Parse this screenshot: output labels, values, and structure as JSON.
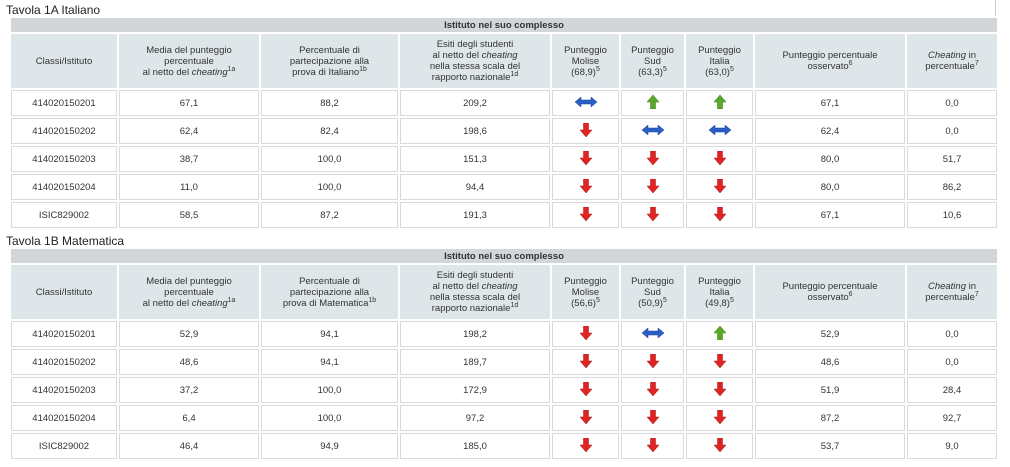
{
  "table_a": {
    "title": "Tavola 1A Italiano",
    "group_header": "Istituto nel suo complesso",
    "headers": {
      "classi": "Classi/Istituto",
      "media_1": "Media del punteggio",
      "media_2": "percentuale",
      "media_3": "al netto del",
      "media_4": "cheating",
      "media_sup": "1a",
      "perc_1": "Percentuale di",
      "perc_2": "partecipazione alla",
      "perc_3": "prova di Italiano",
      "perc_sup": "1b",
      "esiti_1": "Esiti degli studenti",
      "esiti_2": "al netto del",
      "esiti_3": "cheating",
      "esiti_4": "nella stessa scala del",
      "esiti_5": "rapporto nazionale",
      "esiti_sup": "1d",
      "molise_1": "Punteggio",
      "molise_2": "Molise",
      "molise_3": "(68,9)",
      "molise_sup": "5",
      "sud_1": "Punteggio",
      "sud_2": "Sud",
      "sud_3": "(63,3)",
      "sud_sup": "5",
      "italia_1": "Punteggio",
      "italia_2": "Italia",
      "italia_3": "(63,0)",
      "italia_sup": "5",
      "osservato_1": "Punteggio percentuale",
      "osservato_2": "osservato",
      "osservato_sup": "6",
      "cheating_1": "Cheating",
      "cheating_2": "in",
      "cheating_3": "percentuale",
      "cheating_sup": "7"
    },
    "rows": [
      {
        "classe": "414020150201",
        "media": "67,1",
        "perc": "88,2",
        "esiti": "209,2",
        "molise": "equal",
        "sud": "up",
        "italia": "up",
        "osservato": "67,1",
        "cheating": "0,0"
      },
      {
        "classe": "414020150202",
        "media": "62,4",
        "perc": "82,4",
        "esiti": "198,6",
        "molise": "down",
        "sud": "equal",
        "italia": "equal",
        "osservato": "62,4",
        "cheating": "0,0"
      },
      {
        "classe": "414020150203",
        "media": "38,7",
        "perc": "100,0",
        "esiti": "151,3",
        "molise": "down",
        "sud": "down",
        "italia": "down",
        "osservato": "80,0",
        "cheating": "51,7"
      },
      {
        "classe": "414020150204",
        "media": "11,0",
        "perc": "100,0",
        "esiti": "94,4",
        "molise": "down",
        "sud": "down",
        "italia": "down",
        "osservato": "80,0",
        "cheating": "86,2"
      },
      {
        "classe": "ISIC829002",
        "media": "58,5",
        "perc": "87,2",
        "esiti": "191,3",
        "molise": "down",
        "sud": "down",
        "italia": "down",
        "osservato": "67,1",
        "cheating": "10,6"
      }
    ]
  },
  "table_b": {
    "title": "Tavola 1B Matematica",
    "group_header": "Istituto nel suo complesso",
    "headers": {
      "classi": "Classi/Istituto",
      "media_1": "Media del punteggio",
      "media_2": "percentuale",
      "media_3": "al netto del",
      "media_4": "cheating",
      "media_sup": "1a",
      "perc_1": "Percentuale di",
      "perc_2": "partecipazione alla",
      "perc_3": "prova di Matematica",
      "perc_sup": "1b",
      "esiti_1": "Esiti degli studenti",
      "esiti_2": "al netto del",
      "esiti_3": "cheating",
      "esiti_4": "nella stessa scala del",
      "esiti_5": "rapporto nazionale",
      "esiti_sup": "1d",
      "molise_1": "Punteggio",
      "molise_2": "Molise",
      "molise_3": "(56,6)",
      "molise_sup": "5",
      "sud_1": "Punteggio",
      "sud_2": "Sud",
      "sud_3": "(50,9)",
      "sud_sup": "5",
      "italia_1": "Punteggio",
      "italia_2": "Italia",
      "italia_3": "(49,8)",
      "italia_sup": "5",
      "osservato_1": "Punteggio percentuale",
      "osservato_2": "osservato",
      "osservato_sup": "6",
      "cheating_1": "Cheating",
      "cheating_2": "in",
      "cheating_3": "percentuale",
      "cheating_sup": "7"
    },
    "rows": [
      {
        "classe": "414020150201",
        "media": "52,9",
        "perc": "94,1",
        "esiti": "198,2",
        "molise": "down",
        "sud": "equal",
        "italia": "up",
        "osservato": "52,9",
        "cheating": "0,0"
      },
      {
        "classe": "414020150202",
        "media": "48,6",
        "perc": "94,1",
        "esiti": "189,7",
        "molise": "down",
        "sud": "down",
        "italia": "down",
        "osservato": "48,6",
        "cheating": "0,0"
      },
      {
        "classe": "414020150203",
        "media": "37,2",
        "perc": "100,0",
        "esiti": "172,9",
        "molise": "down",
        "sud": "down",
        "italia": "down",
        "osservato": "51,9",
        "cheating": "28,4"
      },
      {
        "classe": "414020150204",
        "media": "6,4",
        "perc": "100,0",
        "esiti": "97,2",
        "molise": "down",
        "sud": "down",
        "italia": "down",
        "osservato": "87,2",
        "cheating": "92,7"
      },
      {
        "classe": "ISIC829002",
        "media": "46,4",
        "perc": "94,9",
        "esiti": "185,0",
        "molise": "down",
        "sud": "down",
        "italia": "down",
        "osservato": "53,7",
        "cheating": "9,0"
      }
    ]
  },
  "icons": {
    "up": "arrow-up-green-icon",
    "down": "arrow-down-red-icon",
    "equal": "arrow-left-right-blue-icon"
  },
  "colors": {
    "up": "#5aa829",
    "down": "#e02424",
    "equal": "#2a5fc8",
    "header_bg": "#dfe6e9",
    "group_bg": "#d3d6d8"
  }
}
